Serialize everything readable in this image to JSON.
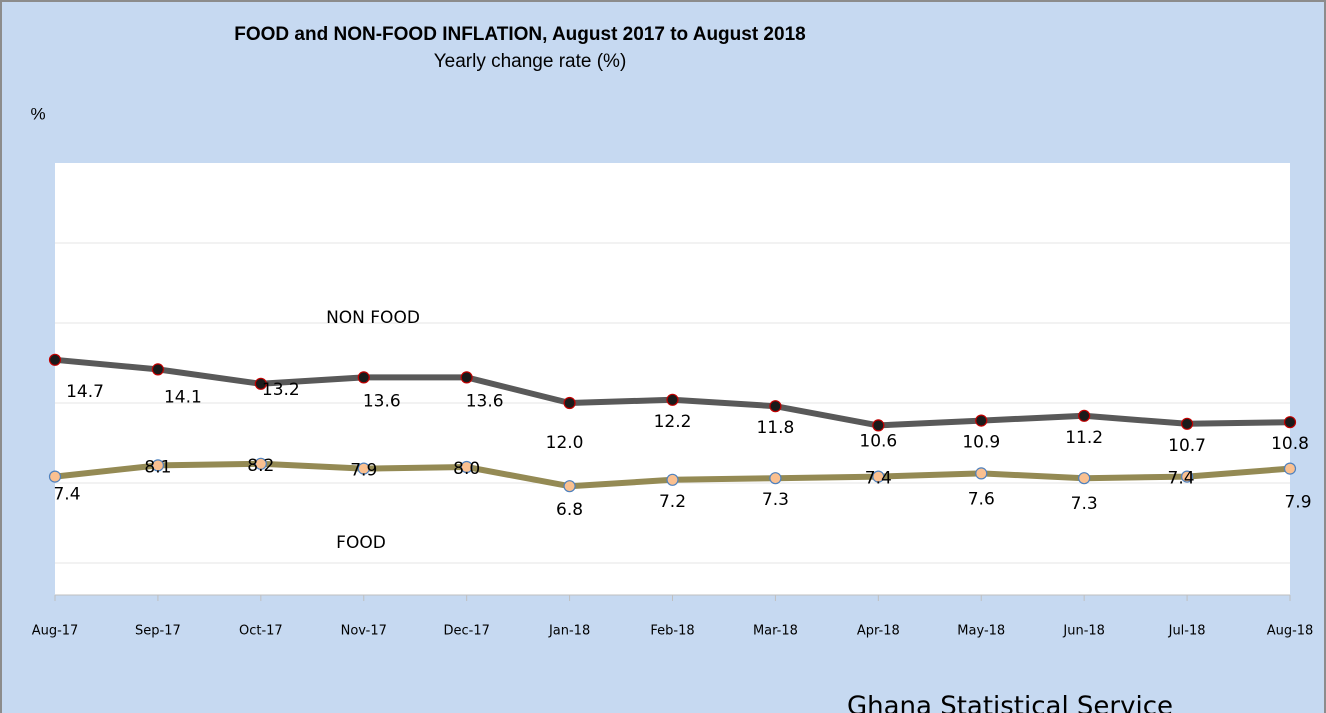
{
  "chart_data": {
    "type": "line",
    "title": "FOOD and NON-FOOD INFLATION,  August 2017  to  August  2018",
    "subtitle": "Yearly change rate (%)",
    "y_label": "%",
    "source": "Ghana Statistical Service",
    "categories": [
      "Aug-17",
      "Sep-17",
      "Oct-17",
      "Nov-17",
      "Dec-17",
      "Jan-18",
      "Feb-18",
      "Mar-18",
      "Apr-18",
      "May-18",
      "Jun-18",
      "Jul-18",
      "Aug-18"
    ],
    "series": [
      {
        "name": "NON FOOD",
        "color": "#595959",
        "marker_fill": "#1a1a1a",
        "marker_stroke": "#c00000",
        "values": [
          14.7,
          14.1,
          13.2,
          13.6,
          13.6,
          12.0,
          12.2,
          11.8,
          10.6,
          10.9,
          11.2,
          10.7,
          10.8
        ],
        "value_labels": [
          "14.7",
          "14.1",
          "13.2",
          "13.6",
          "13.6",
          "12.0",
          "12.2",
          "11.8",
          "10.6",
          "10.9",
          "11.2",
          "10.7",
          "10.8"
        ]
      },
      {
        "name": "FOOD",
        "color": "#948a54",
        "marker_fill": "#fac090",
        "marker_stroke": "#4f81bd",
        "values": [
          7.4,
          8.1,
          8.2,
          7.9,
          8.0,
          6.8,
          7.2,
          7.3,
          7.4,
          7.6,
          7.3,
          7.4,
          7.9
        ],
        "value_labels": [
          "7.4",
          "8.1",
          "8.2",
          "7.9",
          "8.0",
          "6.8",
          "7.2",
          "7.3",
          "7.4",
          "7.6",
          "7.3",
          "7.4",
          "7.9"
        ]
      }
    ],
    "ylim": [
      0,
      27
    ],
    "yticks": [
      2,
      7,
      12,
      17,
      22
    ],
    "grid": true
  }
}
